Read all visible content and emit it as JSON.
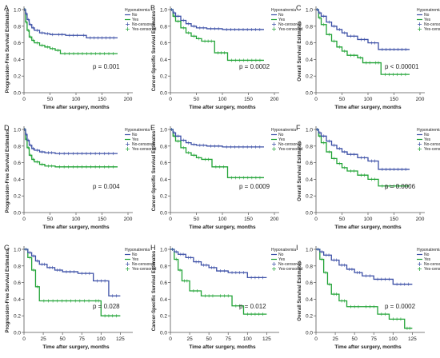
{
  "figure": {
    "colors": {
      "no": "#3b4fa6",
      "yes": "#21a336",
      "axis": "#555555",
      "text": "#222222"
    },
    "legend_title": "Hyponatremia",
    "legend_entries": [
      "No",
      "Yes",
      "No-censored",
      "Yes-censored"
    ],
    "x_axis_label": "Time after surgery, months"
  },
  "chart_data": [
    {
      "panel": "A",
      "type": "line",
      "ylabel": "Progression-Free Survival Estimates",
      "xlabel": "Time after surgery, months",
      "xlim": [
        0,
        200
      ],
      "ylim": [
        0,
        1.0
      ],
      "x_ticks": [
        0,
        50,
        100,
        150,
        200
      ],
      "y_ticks": [
        0.0,
        0.2,
        0.4,
        0.6,
        0.8,
        1.0
      ],
      "p_value": "p = 0.001",
      "series": [
        {
          "name": "No",
          "x": [
            0,
            3,
            6,
            10,
            15,
            20,
            30,
            40,
            50,
            60,
            80,
            110,
            120,
            180
          ],
          "y": [
            1.0,
            0.95,
            0.88,
            0.82,
            0.78,
            0.75,
            0.72,
            0.71,
            0.7,
            0.7,
            0.69,
            0.69,
            0.66,
            0.66
          ]
        },
        {
          "name": "Yes",
          "x": [
            0,
            3,
            6,
            10,
            15,
            20,
            30,
            40,
            50,
            60,
            70,
            180
          ],
          "y": [
            1.0,
            0.85,
            0.75,
            0.67,
            0.63,
            0.6,
            0.57,
            0.55,
            0.53,
            0.51,
            0.47,
            0.47
          ]
        }
      ]
    },
    {
      "panel": "B",
      "type": "line",
      "ylabel": "Cancer-Specific Survival Estimates",
      "xlabel": "Time after surgery, months",
      "xlim": [
        0,
        200
      ],
      "ylim": [
        0,
        1.0
      ],
      "x_ticks": [
        0,
        50,
        100,
        150,
        200
      ],
      "y_ticks": [
        0.0,
        0.2,
        0.4,
        0.6,
        0.8,
        1.0
      ],
      "p_value": "p = 0.0002",
      "series": [
        {
          "name": "No",
          "x": [
            0,
            5,
            10,
            20,
            30,
            40,
            50,
            70,
            100,
            180
          ],
          "y": [
            1.0,
            0.96,
            0.92,
            0.87,
            0.83,
            0.8,
            0.78,
            0.77,
            0.76,
            0.76
          ]
        },
        {
          "name": "Yes",
          "x": [
            0,
            5,
            10,
            20,
            30,
            40,
            50,
            60,
            85,
            110,
            180
          ],
          "y": [
            1.0,
            0.92,
            0.86,
            0.78,
            0.72,
            0.68,
            0.65,
            0.62,
            0.48,
            0.39,
            0.39
          ]
        }
      ]
    },
    {
      "panel": "C",
      "type": "line",
      "ylabel": "Overall Survival Estimates",
      "xlabel": "Time after surgery, months",
      "xlim": [
        0,
        200
      ],
      "ylim": [
        0,
        1.0
      ],
      "x_ticks": [
        0,
        50,
        100,
        150,
        200
      ],
      "y_ticks": [
        0.0,
        0.2,
        0.4,
        0.6,
        0.8,
        1.0
      ],
      "p_value": "p < 0.00001",
      "series": [
        {
          "name": "No",
          "x": [
            0,
            5,
            10,
            20,
            30,
            40,
            50,
            60,
            80,
            100,
            120,
            180
          ],
          "y": [
            1.0,
            0.96,
            0.92,
            0.85,
            0.8,
            0.76,
            0.72,
            0.68,
            0.64,
            0.6,
            0.52,
            0.52
          ]
        },
        {
          "name": "Yes",
          "x": [
            0,
            5,
            10,
            20,
            30,
            40,
            50,
            60,
            80,
            90,
            110,
            125,
            180
          ],
          "y": [
            1.0,
            0.9,
            0.82,
            0.7,
            0.62,
            0.55,
            0.5,
            0.45,
            0.42,
            0.36,
            0.36,
            0.22,
            0.22
          ]
        }
      ]
    },
    {
      "panel": "D",
      "type": "line",
      "ylabel": "Progression-Free Survival Estimates",
      "xlabel": "Time after surgery, months",
      "xlim": [
        0,
        200
      ],
      "ylim": [
        0,
        1.0
      ],
      "x_ticks": [
        0,
        50,
        100,
        150,
        200
      ],
      "y_ticks": [
        0.0,
        0.2,
        0.4,
        0.6,
        0.8,
        1.0
      ],
      "p_value": "p = 0.004",
      "series": [
        {
          "name": "No",
          "x": [
            0,
            3,
            6,
            10,
            15,
            20,
            30,
            40,
            60,
            180
          ],
          "y": [
            1.0,
            0.94,
            0.87,
            0.81,
            0.77,
            0.75,
            0.73,
            0.72,
            0.71,
            0.71
          ]
        },
        {
          "name": "Yes",
          "x": [
            0,
            3,
            6,
            10,
            15,
            20,
            30,
            40,
            60,
            180
          ],
          "y": [
            1.0,
            0.88,
            0.78,
            0.69,
            0.64,
            0.61,
            0.58,
            0.56,
            0.55,
            0.55
          ]
        }
      ]
    },
    {
      "panel": "E",
      "type": "line",
      "ylabel": "Cancer-Specific Survival Estimates",
      "xlabel": "Time after surgery, months",
      "xlim": [
        0,
        200
      ],
      "ylim": [
        0,
        1.0
      ],
      "x_ticks": [
        0,
        50,
        100,
        150,
        200
      ],
      "y_ticks": [
        0.0,
        0.2,
        0.4,
        0.6,
        0.8,
        1.0
      ],
      "p_value": "p = 0.0009",
      "series": [
        {
          "name": "No",
          "x": [
            0,
            5,
            10,
            20,
            30,
            40,
            50,
            70,
            100,
            180
          ],
          "y": [
            1.0,
            0.96,
            0.92,
            0.87,
            0.84,
            0.82,
            0.81,
            0.8,
            0.79,
            0.79
          ]
        },
        {
          "name": "Yes",
          "x": [
            0,
            5,
            10,
            20,
            30,
            40,
            50,
            60,
            80,
            110,
            180
          ],
          "y": [
            1.0,
            0.92,
            0.86,
            0.78,
            0.72,
            0.69,
            0.66,
            0.64,
            0.55,
            0.42,
            0.42
          ]
        }
      ]
    },
    {
      "panel": "F",
      "type": "line",
      "ylabel": "Overall Survival Estimates",
      "xlabel": "Time after surgery, months",
      "xlim": [
        0,
        200
      ],
      "ylim": [
        0,
        1.0
      ],
      "x_ticks": [
        0,
        50,
        100,
        150,
        200
      ],
      "y_ticks": [
        0.0,
        0.2,
        0.4,
        0.6,
        0.8,
        1.0
      ],
      "p_value": "p = 0.0006",
      "series": [
        {
          "name": "No",
          "x": [
            0,
            5,
            10,
            20,
            30,
            40,
            50,
            60,
            80,
            100,
            120,
            180
          ],
          "y": [
            1.0,
            0.96,
            0.92,
            0.86,
            0.81,
            0.77,
            0.73,
            0.7,
            0.66,
            0.62,
            0.52,
            0.52
          ]
        },
        {
          "name": "Yes",
          "x": [
            0,
            5,
            10,
            20,
            30,
            40,
            50,
            60,
            80,
            100,
            120,
            180
          ],
          "y": [
            1.0,
            0.92,
            0.84,
            0.73,
            0.65,
            0.59,
            0.54,
            0.5,
            0.45,
            0.4,
            0.32,
            0.32
          ]
        }
      ]
    },
    {
      "panel": "G",
      "type": "line",
      "ylabel": "Progression-Free Survival Estimates",
      "xlabel": "Time after surgery, months",
      "xlim": [
        0,
        135
      ],
      "ylim": [
        0,
        1.0
      ],
      "x_ticks": [
        0,
        25,
        50,
        75,
        100,
        125
      ],
      "y_ticks": [
        0.0,
        0.2,
        0.4,
        0.6,
        0.8,
        1.0
      ],
      "p_value": "p = 0.028",
      "series": [
        {
          "name": "No",
          "x": [
            0,
            5,
            10,
            15,
            20,
            30,
            40,
            50,
            70,
            90,
            110,
            125
          ],
          "y": [
            1.0,
            0.96,
            0.92,
            0.86,
            0.82,
            0.78,
            0.75,
            0.73,
            0.71,
            0.62,
            0.44,
            0.44
          ]
        },
        {
          "name": "Yes",
          "x": [
            0,
            5,
            10,
            15,
            20,
            90,
            100,
            125
          ],
          "y": [
            1.0,
            0.9,
            0.75,
            0.55,
            0.38,
            0.38,
            0.2,
            0.2
          ]
        }
      ]
    },
    {
      "panel": "H",
      "type": "line",
      "ylabel": "Cancer-Specific Survival Estimates",
      "xlabel": "Time after surgery, months",
      "xlim": [
        0,
        135
      ],
      "ylim": [
        0,
        1.0
      ],
      "x_ticks": [
        0,
        25,
        50,
        75,
        100,
        125
      ],
      "y_ticks": [
        0.0,
        0.2,
        0.4,
        0.6,
        0.8,
        1.0
      ],
      "p_value": "p = 0.012",
      "series": [
        {
          "name": "No",
          "x": [
            0,
            5,
            10,
            20,
            30,
            40,
            50,
            60,
            75,
            100,
            125
          ],
          "y": [
            1.0,
            0.97,
            0.94,
            0.9,
            0.85,
            0.81,
            0.78,
            0.74,
            0.72,
            0.66,
            0.66
          ]
        },
        {
          "name": "Yes",
          "x": [
            0,
            5,
            10,
            15,
            25,
            40,
            60,
            80,
            95,
            125
          ],
          "y": [
            1.0,
            0.88,
            0.75,
            0.62,
            0.5,
            0.44,
            0.44,
            0.32,
            0.22,
            0.22
          ]
        }
      ]
    },
    {
      "panel": "I",
      "type": "line",
      "ylabel": "Overall Survival Estimates",
      "xlabel": "Time after surgery, months",
      "xlim": [
        0,
        135
      ],
      "ylim": [
        0,
        1.0
      ],
      "x_ticks": [
        0,
        25,
        50,
        75,
        100,
        125
      ],
      "y_ticks": [
        0.0,
        0.2,
        0.4,
        0.6,
        0.8,
        1.0
      ],
      "p_value": "p = 0.0002",
      "series": [
        {
          "name": "No",
          "x": [
            0,
            5,
            10,
            20,
            30,
            40,
            50,
            60,
            75,
            100,
            125
          ],
          "y": [
            1.0,
            0.97,
            0.93,
            0.87,
            0.81,
            0.76,
            0.72,
            0.68,
            0.64,
            0.58,
            0.58
          ]
        },
        {
          "name": "Yes",
          "x": [
            0,
            5,
            10,
            15,
            20,
            30,
            40,
            60,
            80,
            95,
            115,
            125
          ],
          "y": [
            1.0,
            0.88,
            0.72,
            0.58,
            0.46,
            0.38,
            0.31,
            0.31,
            0.22,
            0.16,
            0.05,
            0.05
          ]
        }
      ]
    }
  ]
}
